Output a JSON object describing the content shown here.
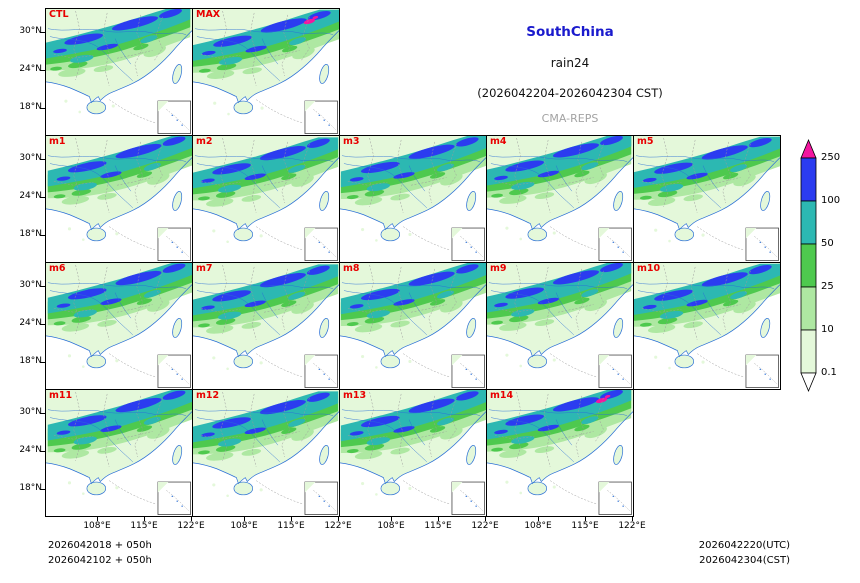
{
  "header": {
    "region": "SouthChina",
    "variable": "rain24",
    "period": "(2026042204-2026042304 CST)",
    "model": "CMA-REPS"
  },
  "panels": [
    {
      "label": "CTL",
      "row": 0,
      "col": 0,
      "magenta": false
    },
    {
      "label": "MAX",
      "row": 0,
      "col": 1,
      "magenta": true
    },
    {
      "label": "m1",
      "row": 1,
      "col": 0,
      "magenta": false
    },
    {
      "label": "m2",
      "row": 1,
      "col": 1,
      "magenta": false
    },
    {
      "label": "m3",
      "row": 1,
      "col": 2,
      "magenta": false
    },
    {
      "label": "m4",
      "row": 1,
      "col": 3,
      "magenta": false
    },
    {
      "label": "m5",
      "row": 1,
      "col": 4,
      "magenta": false
    },
    {
      "label": "m6",
      "row": 2,
      "col": 0,
      "magenta": false
    },
    {
      "label": "m7",
      "row": 2,
      "col": 1,
      "magenta": false
    },
    {
      "label": "m8",
      "row": 2,
      "col": 2,
      "magenta": false
    },
    {
      "label": "m9",
      "row": 2,
      "col": 3,
      "magenta": false
    },
    {
      "label": "m10",
      "row": 2,
      "col": 4,
      "magenta": false
    },
    {
      "label": "m11",
      "row": 3,
      "col": 0,
      "magenta": false
    },
    {
      "label": "m12",
      "row": 3,
      "col": 1,
      "magenta": false
    },
    {
      "label": "m13",
      "row": 3,
      "col": 2,
      "magenta": false
    },
    {
      "label": "m14",
      "row": 3,
      "col": 3,
      "magenta": true
    }
  ],
  "axis": {
    "lat_ticks": [
      "30°N",
      "24°N",
      "18°N"
    ],
    "lon_ticks": [
      "108°E",
      "115°E",
      "122°E"
    ]
  },
  "colorbar": {
    "ticks": [
      "250",
      "100",
      "50",
      "25",
      "10",
      "0.1"
    ],
    "colors": {
      "over": "#f316a0",
      "band_100_250": "#2b3cf0",
      "band_50_100": "#2cb8b2",
      "band_25_50": "#4ec94e",
      "band_10_25": "#aee8a2",
      "band_0_10": "#e4f8da",
      "under": "#ffffff"
    }
  },
  "map": {
    "sea": "#ffffff",
    "land": "#e4f8da",
    "coast": "#2a6fd6",
    "border": "#9a9a9a"
  },
  "theme": {
    "title-blue": "#1a1acd",
    "model-gray": "#a3a3a3",
    "label-red": "#e80000"
  },
  "footer": {
    "init_utc": "2026042018 + 050h",
    "init_cst": "2026042102 + 050h",
    "valid_utc": "2026042220(UTC)",
    "valid_cst": "2026042304(CST)"
  },
  "chart_data": {
    "type": "heatmap",
    "title": "SouthChina rain24 (2026042204-2026042304 CST) CMA-REPS ensemble 24h precipitation",
    "panel_labels": [
      "CTL",
      "MAX",
      "m1",
      "m2",
      "m3",
      "m4",
      "m5",
      "m6",
      "m7",
      "m8",
      "m9",
      "m10",
      "m11",
      "m12",
      "m13",
      "m14"
    ],
    "xlabel_ticks": [
      "108°E",
      "115°E",
      "122°E"
    ],
    "ylabel_ticks": [
      "30°N",
      "24°N",
      "18°N"
    ],
    "colorbar_levels_mm": [
      0.1,
      10,
      25,
      50,
      100,
      250
    ],
    "legend_position": "right",
    "init_times": [
      "2026042018 + 050h (UTC)",
      "2026042102 + 050h (CST)"
    ],
    "valid_times": [
      "2026042220(UTC)",
      "2026042304(CST)"
    ]
  }
}
